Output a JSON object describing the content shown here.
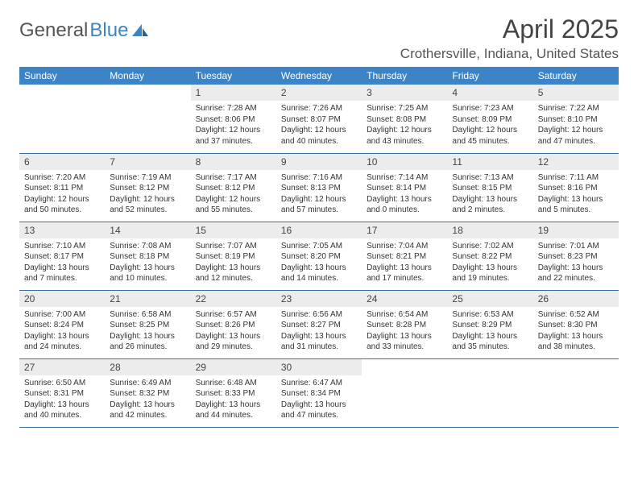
{
  "brand": {
    "word1": "General",
    "word2": "Blue"
  },
  "title": "April 2025",
  "location": "Crothersville, Indiana, United States",
  "colors": {
    "header_bg": "#3d84c6",
    "header_fg": "#ffffff",
    "row_divider": "#3d6fa3",
    "daynum_bg": "#ececec",
    "page_bg": "#ffffff",
    "text": "#333333"
  },
  "typography": {
    "title_fontsize": 32,
    "location_fontsize": 17,
    "th_fontsize": 12,
    "cell_fontsize": 10
  },
  "days_of_week": [
    "Sunday",
    "Monday",
    "Tuesday",
    "Wednesday",
    "Thursday",
    "Friday",
    "Saturday"
  ],
  "weeks": [
    [
      null,
      null,
      {
        "n": "1",
        "sr": "Sunrise: 7:28 AM",
        "ss": "Sunset: 8:06 PM",
        "dl": "Daylight: 12 hours and 37 minutes."
      },
      {
        "n": "2",
        "sr": "Sunrise: 7:26 AM",
        "ss": "Sunset: 8:07 PM",
        "dl": "Daylight: 12 hours and 40 minutes."
      },
      {
        "n": "3",
        "sr": "Sunrise: 7:25 AM",
        "ss": "Sunset: 8:08 PM",
        "dl": "Daylight: 12 hours and 43 minutes."
      },
      {
        "n": "4",
        "sr": "Sunrise: 7:23 AM",
        "ss": "Sunset: 8:09 PM",
        "dl": "Daylight: 12 hours and 45 minutes."
      },
      {
        "n": "5",
        "sr": "Sunrise: 7:22 AM",
        "ss": "Sunset: 8:10 PM",
        "dl": "Daylight: 12 hours and 47 minutes."
      }
    ],
    [
      {
        "n": "6",
        "sr": "Sunrise: 7:20 AM",
        "ss": "Sunset: 8:11 PM",
        "dl": "Daylight: 12 hours and 50 minutes."
      },
      {
        "n": "7",
        "sr": "Sunrise: 7:19 AM",
        "ss": "Sunset: 8:12 PM",
        "dl": "Daylight: 12 hours and 52 minutes."
      },
      {
        "n": "8",
        "sr": "Sunrise: 7:17 AM",
        "ss": "Sunset: 8:12 PM",
        "dl": "Daylight: 12 hours and 55 minutes."
      },
      {
        "n": "9",
        "sr": "Sunrise: 7:16 AM",
        "ss": "Sunset: 8:13 PM",
        "dl": "Daylight: 12 hours and 57 minutes."
      },
      {
        "n": "10",
        "sr": "Sunrise: 7:14 AM",
        "ss": "Sunset: 8:14 PM",
        "dl": "Daylight: 13 hours and 0 minutes."
      },
      {
        "n": "11",
        "sr": "Sunrise: 7:13 AM",
        "ss": "Sunset: 8:15 PM",
        "dl": "Daylight: 13 hours and 2 minutes."
      },
      {
        "n": "12",
        "sr": "Sunrise: 7:11 AM",
        "ss": "Sunset: 8:16 PM",
        "dl": "Daylight: 13 hours and 5 minutes."
      }
    ],
    [
      {
        "n": "13",
        "sr": "Sunrise: 7:10 AM",
        "ss": "Sunset: 8:17 PM",
        "dl": "Daylight: 13 hours and 7 minutes."
      },
      {
        "n": "14",
        "sr": "Sunrise: 7:08 AM",
        "ss": "Sunset: 8:18 PM",
        "dl": "Daylight: 13 hours and 10 minutes."
      },
      {
        "n": "15",
        "sr": "Sunrise: 7:07 AM",
        "ss": "Sunset: 8:19 PM",
        "dl": "Daylight: 13 hours and 12 minutes."
      },
      {
        "n": "16",
        "sr": "Sunrise: 7:05 AM",
        "ss": "Sunset: 8:20 PM",
        "dl": "Daylight: 13 hours and 14 minutes."
      },
      {
        "n": "17",
        "sr": "Sunrise: 7:04 AM",
        "ss": "Sunset: 8:21 PM",
        "dl": "Daylight: 13 hours and 17 minutes."
      },
      {
        "n": "18",
        "sr": "Sunrise: 7:02 AM",
        "ss": "Sunset: 8:22 PM",
        "dl": "Daylight: 13 hours and 19 minutes."
      },
      {
        "n": "19",
        "sr": "Sunrise: 7:01 AM",
        "ss": "Sunset: 8:23 PM",
        "dl": "Daylight: 13 hours and 22 minutes."
      }
    ],
    [
      {
        "n": "20",
        "sr": "Sunrise: 7:00 AM",
        "ss": "Sunset: 8:24 PM",
        "dl": "Daylight: 13 hours and 24 minutes."
      },
      {
        "n": "21",
        "sr": "Sunrise: 6:58 AM",
        "ss": "Sunset: 8:25 PM",
        "dl": "Daylight: 13 hours and 26 minutes."
      },
      {
        "n": "22",
        "sr": "Sunrise: 6:57 AM",
        "ss": "Sunset: 8:26 PM",
        "dl": "Daylight: 13 hours and 29 minutes."
      },
      {
        "n": "23",
        "sr": "Sunrise: 6:56 AM",
        "ss": "Sunset: 8:27 PM",
        "dl": "Daylight: 13 hours and 31 minutes."
      },
      {
        "n": "24",
        "sr": "Sunrise: 6:54 AM",
        "ss": "Sunset: 8:28 PM",
        "dl": "Daylight: 13 hours and 33 minutes."
      },
      {
        "n": "25",
        "sr": "Sunrise: 6:53 AM",
        "ss": "Sunset: 8:29 PM",
        "dl": "Daylight: 13 hours and 35 minutes."
      },
      {
        "n": "26",
        "sr": "Sunrise: 6:52 AM",
        "ss": "Sunset: 8:30 PM",
        "dl": "Daylight: 13 hours and 38 minutes."
      }
    ],
    [
      {
        "n": "27",
        "sr": "Sunrise: 6:50 AM",
        "ss": "Sunset: 8:31 PM",
        "dl": "Daylight: 13 hours and 40 minutes."
      },
      {
        "n": "28",
        "sr": "Sunrise: 6:49 AM",
        "ss": "Sunset: 8:32 PM",
        "dl": "Daylight: 13 hours and 42 minutes."
      },
      {
        "n": "29",
        "sr": "Sunrise: 6:48 AM",
        "ss": "Sunset: 8:33 PM",
        "dl": "Daylight: 13 hours and 44 minutes."
      },
      {
        "n": "30",
        "sr": "Sunrise: 6:47 AM",
        "ss": "Sunset: 8:34 PM",
        "dl": "Daylight: 13 hours and 47 minutes."
      },
      null,
      null,
      null
    ]
  ]
}
